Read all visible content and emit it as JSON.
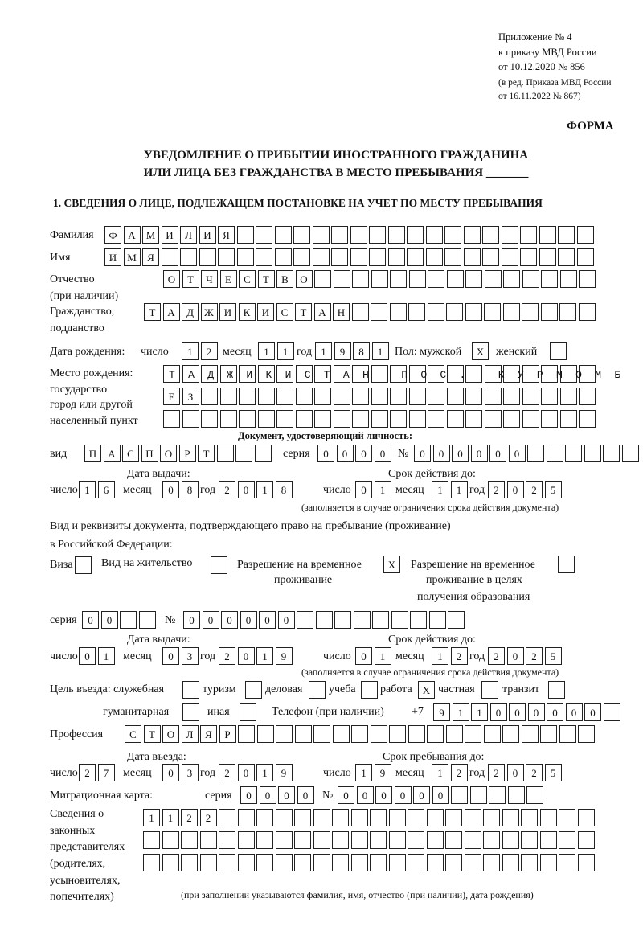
{
  "header": {
    "appendix": "Приложение № 4",
    "order": "к приказу МВД России",
    "order_date": "от 10.12.2020 № 856",
    "revision_1": "(в ред. Приказа МВД России",
    "revision_2": "от 16.11.2022 № 867)",
    "form_label": "ФОРМА",
    "title_1": "УВЕДОМЛЕНИЕ О ПРИБЫТИИ ИНОСТРАННОГО ГРАЖДАНИНА",
    "title_2": "ИЛИ ЛИЦА БЕЗ ГРАЖДАНСТВА В МЕСТО ПРЕБЫВАНИЯ _______",
    "section_1": "1. СВЕДЕНИЯ О ЛИЦЕ, ПОДЛЕЖАЩЕМ ПОСТАНОВКЕ НА УЧЕТ ПО МЕСТУ ПРЕБЫВАНИЯ"
  },
  "labels": {
    "surname": "Фамилия",
    "name": "Имя",
    "patronymic": "Отчество",
    "patronymic_note": "(при наличии)",
    "citizenship": "Гражданство,",
    "citizenship_2": "подданство",
    "birth_date": "Дата рождения:",
    "day": "число",
    "month": "месяц",
    "year": "год",
    "sex": "Пол: мужской",
    "female": "женский",
    "birth_place_1": "Место рождения:",
    "birth_place_2": "государство",
    "birth_place_3": "город или другой",
    "birth_place_4": "населенный пункт",
    "identity_doc": "Документ, удостоверяющий личность:",
    "kind": "вид",
    "series": "серия",
    "number": "№",
    "issue_date": "Дата выдачи:",
    "valid_until": "Срок действия до:",
    "validity_note": "(заполняется в случае ограничения срока действия документа)",
    "stay_doc_1": "Вид и реквизиты документа, подтверждающего право на пребывание (проживание)",
    "stay_doc_2": "в Российской Федерации:",
    "visa": "Виза",
    "residence_permit": "Вид на жительство",
    "temp_permit_1": "Разрешение на временное",
    "temp_permit_2": "проживание",
    "temp_edu_1": "Разрешение на временное",
    "temp_edu_2": "проживание в целях",
    "temp_edu_3": "получения образования",
    "purpose": "Цель въезда: служебная",
    "tourism": "туризм",
    "business": "деловая",
    "study": "учеба",
    "work": "работа",
    "private": "частная",
    "transit": "транзит",
    "humanitarian": "гуманитарная",
    "other": "иная",
    "phone": "Телефон (при наличии)",
    "phone_prefix": "+7",
    "profession": "Профессия",
    "entry_date": "Дата въезда:",
    "stay_until": "Срок пребывания до:",
    "migration_card": "Миграционная карта:",
    "reps_1": "Сведения о",
    "reps_2": "законных",
    "reps_3": "представителях",
    "reps_4": "(родителях,",
    "reps_5": "усыновителях,",
    "reps_6": "попечителях)",
    "reps_note": "(при заполнении указываются фамилия, имя, отчество (при наличии), дата рождения)"
  },
  "person": {
    "surname": "ФАМИЛИЯ",
    "name": "ИМЯ",
    "patronymic": "ОТЧЕСТВО",
    "citizenship": "ТАДЖИКИСТАН",
    "birth": {
      "day": "12",
      "month": "11",
      "year": "1981"
    },
    "sex_male": "X",
    "sex_female": "",
    "birth_place_1": "ТАДЖИКИСТАН ПОС. КУРМОМБ",
    "birth_place_2": "ЕЗ",
    "birth_place_3": ""
  },
  "identity_document": {
    "kind": "ПАСПОРТ",
    "series": "0000",
    "number": "000000",
    "issue": {
      "day": "16",
      "month": "08",
      "year": "2018"
    },
    "valid": {
      "day": "01",
      "month": "11",
      "year": "2025"
    }
  },
  "stay_document": {
    "visa": "",
    "residence_permit": "",
    "temp_permit": "X",
    "temp_edu": "",
    "series": "00",
    "number": "000000",
    "issue": {
      "day": "01",
      "month": "03",
      "year": "2019"
    },
    "valid": {
      "day": "01",
      "month": "12",
      "year": "2025"
    }
  },
  "purpose": {
    "official": "",
    "tourism": "",
    "business": "",
    "study": "",
    "work": "X",
    "private": "",
    "transit": "",
    "humanitarian": "",
    "other": ""
  },
  "phone": "911000000",
  "profession": "СТОЛЯР",
  "entry": {
    "day": "27",
    "month": "03",
    "year": "2019"
  },
  "stay_until": {
    "day": "19",
    "month": "12",
    "year": "2025"
  },
  "migration_card": {
    "series": "0000",
    "number": "000000"
  },
  "representatives": {
    "line_1": "1122",
    "line_2": "",
    "line_3": ""
  }
}
